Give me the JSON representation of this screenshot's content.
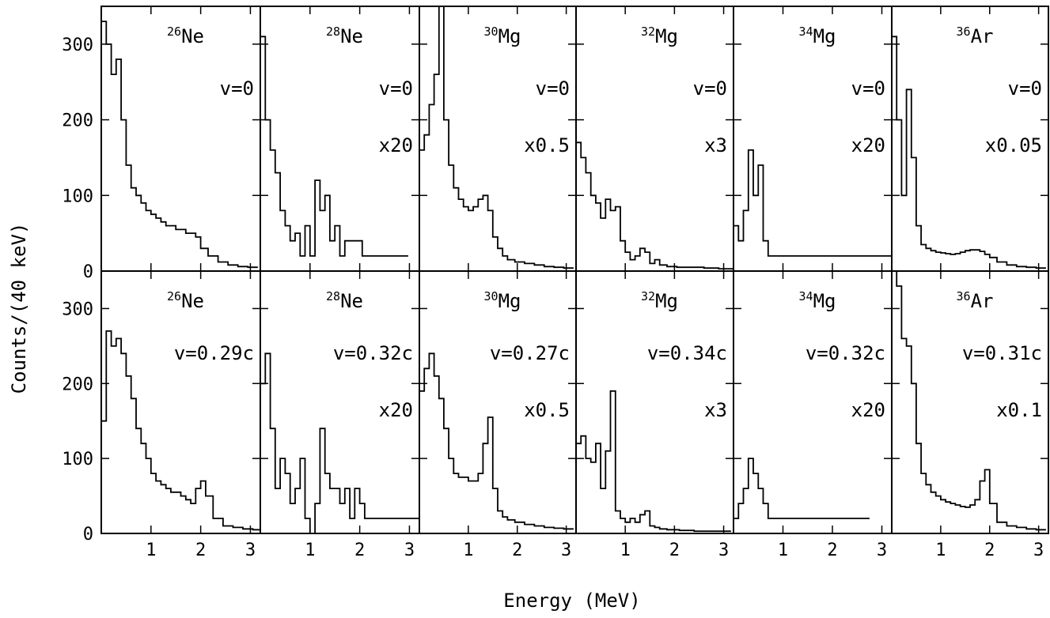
{
  "chart_data": {
    "type": "step",
    "xlabel": "Energy (MeV)",
    "ylabel": "Counts/(40 keV)",
    "xlim": [
      0,
      3.2
    ],
    "ylim": [
      0,
      350
    ],
    "xticks": [
      1,
      2,
      3
    ],
    "yticks": [
      0,
      100,
      200,
      300
    ],
    "grid": false,
    "layout": "2 rows x 6 columns, shared axes",
    "panels": [
      {
        "row": 0,
        "col": 0,
        "mass": "26",
        "element": "Ne",
        "velocity_label": "v=0",
        "scale_label": "",
        "x": [
          0.05,
          0.15,
          0.25,
          0.35,
          0.45,
          0.55,
          0.65,
          0.75,
          0.85,
          0.95,
          1.05,
          1.15,
          1.25,
          1.35,
          1.45,
          1.55,
          1.65,
          1.75,
          1.85,
          1.95,
          2.05,
          2.25,
          2.45,
          2.65,
          2.85,
          3.05
        ],
        "y": [
          330,
          300,
          260,
          280,
          200,
          140,
          110,
          100,
          90,
          80,
          75,
          70,
          65,
          60,
          60,
          55,
          55,
          50,
          50,
          45,
          30,
          20,
          12,
          8,
          6,
          5
        ]
      },
      {
        "row": 0,
        "col": 1,
        "mass": "28",
        "element": "Ne",
        "velocity_label": "v=0",
        "scale_label": "x20",
        "x": [
          0.05,
          0.15,
          0.25,
          0.35,
          0.45,
          0.55,
          0.65,
          0.75,
          0.85,
          0.95,
          1.05,
          1.15,
          1.25,
          1.35,
          1.45,
          1.55,
          1.65,
          1.75,
          1.85,
          2.25,
          2.45,
          2.8
        ],
        "y": [
          310,
          200,
          160,
          130,
          80,
          60,
          40,
          50,
          20,
          60,
          20,
          120,
          80,
          100,
          40,
          60,
          20,
          40,
          40,
          20,
          20,
          20
        ]
      },
      {
        "row": 0,
        "col": 2,
        "mass": "30",
        "element": "Mg",
        "velocity_label": "v=0",
        "scale_label": "x0.5",
        "x": [
          0.05,
          0.15,
          0.25,
          0.35,
          0.45,
          0.55,
          0.65,
          0.75,
          0.85,
          0.95,
          1.05,
          1.15,
          1.25,
          1.35,
          1.45,
          1.55,
          1.65,
          1.75,
          1.85,
          2.05,
          2.25,
          2.45,
          2.65,
          2.85,
          3.05
        ],
        "y": [
          160,
          180,
          220,
          260,
          350,
          200,
          140,
          110,
          95,
          85,
          80,
          85,
          95,
          100,
          80,
          45,
          30,
          20,
          15,
          12,
          10,
          8,
          6,
          5,
          4
        ]
      },
      {
        "row": 0,
        "col": 3,
        "mass": "32",
        "element": "Mg",
        "velocity_label": "v=0",
        "scale_label": "x3",
        "x": [
          0.05,
          0.15,
          0.25,
          0.35,
          0.45,
          0.55,
          0.65,
          0.75,
          0.85,
          0.95,
          1.05,
          1.15,
          1.25,
          1.35,
          1.45,
          1.55,
          1.65,
          1.75,
          1.95,
          2.15,
          2.45,
          2.75,
          3.05
        ],
        "y": [
          170,
          150,
          130,
          100,
          90,
          70,
          95,
          80,
          85,
          40,
          25,
          15,
          20,
          30,
          25,
          10,
          15,
          8,
          6,
          5,
          5,
          4,
          3
        ]
      },
      {
        "row": 0,
        "col": 4,
        "mass": "34",
        "element": "Mg",
        "velocity_label": "v=0",
        "scale_label": "x20",
        "x": [
          0.05,
          0.15,
          0.25,
          0.35,
          0.45,
          0.55,
          0.65,
          0.75,
          0.85,
          0.95,
          1.05,
          1.15,
          1.25,
          1.35,
          1.45,
          1.55,
          1.65,
          1.75,
          2.25,
          2.45,
          2.65,
          3.05
        ],
        "y": [
          60,
          40,
          80,
          160,
          100,
          140,
          40,
          20,
          20,
          20,
          20,
          20,
          20,
          20,
          20,
          20,
          20,
          20,
          20,
          20,
          20,
          20
        ]
      },
      {
        "row": 0,
        "col": 5,
        "mass": "36",
        "element": "Ar",
        "velocity_label": "v=0",
        "scale_label": "x0.05",
        "x": [
          0.05,
          0.15,
          0.25,
          0.35,
          0.45,
          0.55,
          0.65,
          0.75,
          0.85,
          0.95,
          1.05,
          1.15,
          1.25,
          1.35,
          1.45,
          1.55,
          1.65,
          1.75,
          1.85,
          1.95,
          2.05,
          2.25,
          2.45,
          2.65,
          2.85,
          3.05
        ],
        "y": [
          310,
          200,
          100,
          240,
          150,
          60,
          35,
          30,
          27,
          25,
          24,
          23,
          22,
          23,
          25,
          27,
          28,
          28,
          26,
          22,
          18,
          12,
          8,
          6,
          5,
          4
        ]
      },
      {
        "row": 1,
        "col": 0,
        "mass": "26",
        "element": "Ne",
        "velocity_label": "v=0.29c",
        "scale_label": "",
        "x": [
          0.05,
          0.15,
          0.25,
          0.35,
          0.45,
          0.55,
          0.65,
          0.75,
          0.85,
          0.95,
          1.05,
          1.15,
          1.25,
          1.35,
          1.45,
          1.55,
          1.65,
          1.75,
          1.85,
          1.95,
          2.05,
          2.15,
          2.35,
          2.55,
          2.75,
          2.95,
          3.15
        ],
        "y": [
          150,
          270,
          250,
          260,
          240,
          210,
          180,
          140,
          120,
          100,
          80,
          70,
          65,
          60,
          55,
          55,
          50,
          45,
          40,
          60,
          70,
          50,
          20,
          10,
          8,
          6,
          5
        ]
      },
      {
        "row": 1,
        "col": 1,
        "mass": "28",
        "element": "Ne",
        "velocity_label": "v=0.32c",
        "scale_label": "x20",
        "x": [
          0.05,
          0.15,
          0.25,
          0.35,
          0.45,
          0.55,
          0.65,
          0.75,
          0.85,
          0.95,
          1.05,
          1.15,
          1.25,
          1.35,
          1.45,
          1.55,
          1.65,
          1.75,
          1.85,
          1.95,
          2.05,
          2.15,
          2.3,
          2.5,
          2.75,
          3.1
        ],
        "y": [
          200,
          240,
          140,
          60,
          100,
          80,
          40,
          60,
          100,
          20,
          0,
          40,
          140,
          80,
          60,
          60,
          40,
          60,
          20,
          60,
          40,
          20,
          20,
          20,
          20,
          20
        ]
      },
      {
        "row": 1,
        "col": 2,
        "mass": "30",
        "element": "Mg",
        "velocity_label": "v=0.27c",
        "scale_label": "x0.5",
        "x": [
          0.05,
          0.15,
          0.25,
          0.35,
          0.45,
          0.55,
          0.65,
          0.75,
          0.85,
          0.95,
          1.05,
          1.15,
          1.25,
          1.35,
          1.45,
          1.55,
          1.65,
          1.75,
          1.85,
          2.05,
          2.25,
          2.45,
          2.65,
          2.85,
          3.05
        ],
        "y": [
          190,
          220,
          240,
          210,
          180,
          140,
          100,
          80,
          75,
          75,
          70,
          70,
          80,
          120,
          155,
          60,
          30,
          22,
          18,
          15,
          12,
          10,
          8,
          7,
          6
        ]
      },
      {
        "row": 1,
        "col": 3,
        "mass": "32",
        "element": "Mg",
        "velocity_label": "v=0.34c",
        "scale_label": "x3",
        "x": [
          0.05,
          0.15,
          0.25,
          0.35,
          0.45,
          0.55,
          0.65,
          0.75,
          0.85,
          0.95,
          1.05,
          1.15,
          1.25,
          1.35,
          1.45,
          1.55,
          1.65,
          1.75,
          1.95,
          2.25,
          2.55,
          2.85,
          3.05
        ],
        "y": [
          120,
          130,
          100,
          95,
          120,
          60,
          110,
          190,
          30,
          20,
          15,
          20,
          15,
          25,
          30,
          10,
          8,
          6,
          5,
          4,
          3,
          3,
          3
        ]
      },
      {
        "row": 1,
        "col": 4,
        "mass": "34",
        "element": "Mg",
        "velocity_label": "v=0.32c",
        "scale_label": "x20",
        "x": [
          0.05,
          0.15,
          0.25,
          0.35,
          0.45,
          0.55,
          0.65,
          0.75,
          0.85,
          0.95,
          1.05,
          1.15,
          1.25,
          1.45,
          1.65,
          1.85,
          2.05,
          2.25,
          2.45,
          2.65
        ],
        "y": [
          20,
          40,
          60,
          100,
          80,
          60,
          40,
          20,
          20,
          20,
          20,
          20,
          20,
          20,
          20,
          20,
          20,
          20,
          20,
          20
        ]
      },
      {
        "row": 1,
        "col": 5,
        "mass": "36",
        "element": "Ar",
        "velocity_label": "v=0.31c",
        "scale_label": "x0.1",
        "x": [
          0.05,
          0.15,
          0.25,
          0.35,
          0.45,
          0.55,
          0.65,
          0.75,
          0.85,
          0.95,
          1.05,
          1.15,
          1.25,
          1.35,
          1.45,
          1.55,
          1.65,
          1.75,
          1.85,
          1.95,
          2.05,
          2.25,
          2.45,
          2.65,
          2.85,
          3.05
        ],
        "y": [
          350,
          330,
          260,
          250,
          200,
          120,
          80,
          65,
          55,
          50,
          45,
          42,
          40,
          38,
          36,
          35,
          38,
          45,
          70,
          85,
          40,
          15,
          10,
          8,
          6,
          5
        ]
      }
    ]
  }
}
